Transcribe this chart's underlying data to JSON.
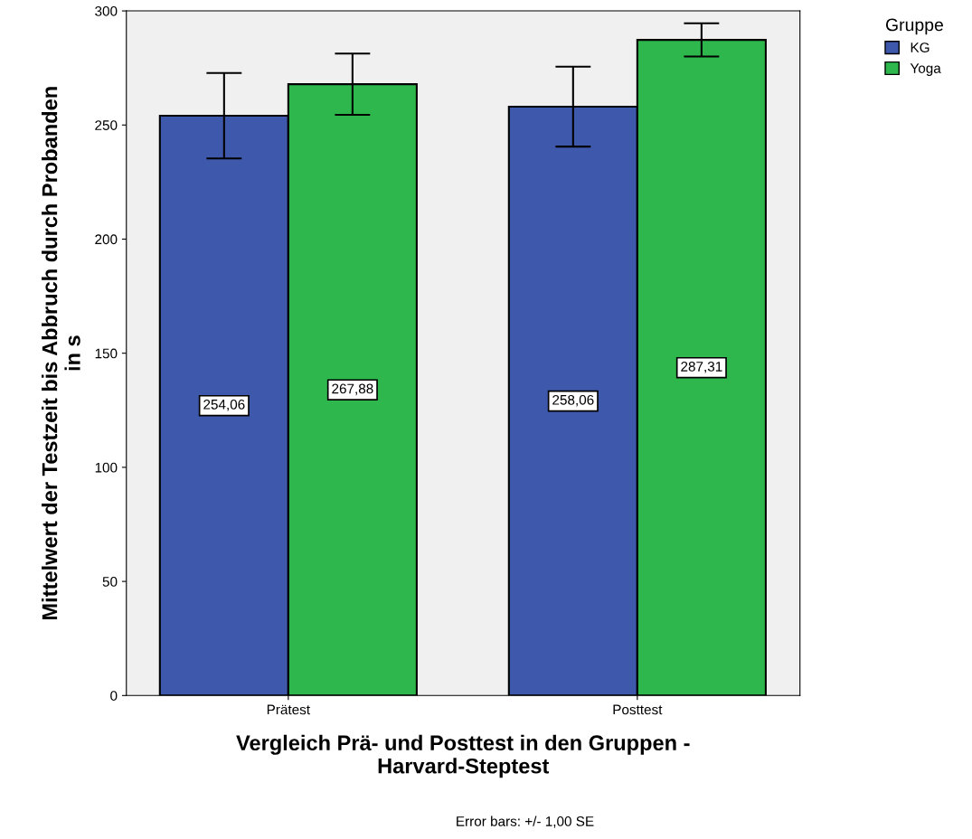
{
  "chart_data": {
    "type": "bar",
    "xlabel": "Vergleich Prä- und Posttest in den Gruppen -\nHarvard-Steptest",
    "ylabel": "Mittelwert der Testzeit bis Abbruch durch Probanden\nin s",
    "categories": [
      "Prätest",
      "Posttest"
    ],
    "series": [
      {
        "name": "KG",
        "color": "#3e58ac",
        "values": [
          254.06,
          258.06
        ],
        "errors": [
          18.7,
          17.5
        ],
        "value_labels": [
          "254,06",
          "258,06"
        ]
      },
      {
        "name": "Yoga",
        "color": "#2eb74c",
        "values": [
          267.88,
          287.31
        ],
        "errors": [
          13.4,
          7.3
        ],
        "value_labels": [
          "267,88",
          "287,31"
        ]
      }
    ],
    "ylim": [
      0,
      300
    ],
    "yticks": [
      0,
      50,
      100,
      150,
      200,
      250,
      300
    ],
    "grid": false,
    "legend": "top right",
    "legend_title": "Gruppe",
    "annotations": [
      "Error bars: +/- 1,00 SE"
    ]
  }
}
